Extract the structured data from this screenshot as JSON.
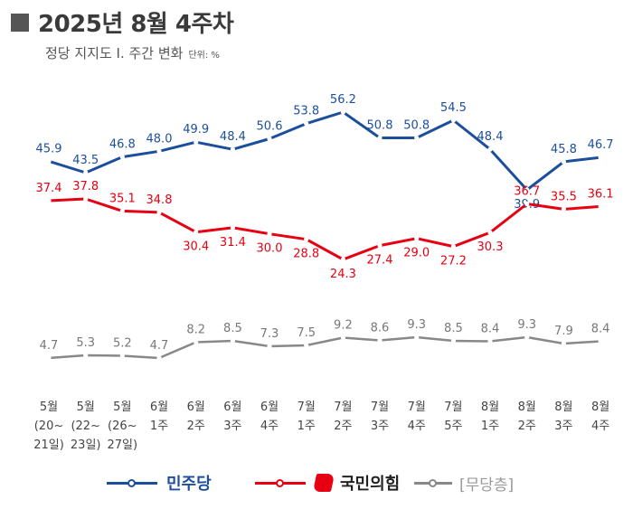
{
  "header": {
    "title": "2025년 8월 4주차",
    "subtitle": "정당 지지도 Ⅰ. 주간 변화",
    "unit": "단위: %"
  },
  "legend": {
    "items": [
      {
        "label": "민주당",
        "color": "#1b4f9c"
      },
      {
        "label": "국민의힘",
        "color": "#e60012"
      },
      {
        "label": "[무당층]",
        "color": "#888888"
      }
    ]
  },
  "chart_data": {
    "type": "line",
    "categories": [
      [
        "5월",
        "(20~",
        "21일)"
      ],
      [
        "5월",
        "(22~",
        "23일)"
      ],
      [
        "5월",
        "(26~",
        "27일)"
      ],
      [
        "6월",
        "1주"
      ],
      [
        "6월",
        "2주"
      ],
      [
        "6월",
        "3주"
      ],
      [
        "6월",
        "4주"
      ],
      [
        "7월",
        "1주"
      ],
      [
        "7월",
        "2주"
      ],
      [
        "7월",
        "3주"
      ],
      [
        "7월",
        "4주"
      ],
      [
        "7월",
        "5주"
      ],
      [
        "8월",
        "1주"
      ],
      [
        "8월",
        "2주"
      ],
      [
        "8월",
        "3주"
      ],
      [
        "8월",
        "4주"
      ]
    ],
    "series": [
      {
        "name": "민주당",
        "color": "#1b4f9c",
        "values": [
          45.9,
          43.5,
          46.8,
          48.0,
          49.9,
          48.4,
          50.6,
          53.8,
          56.2,
          50.8,
          50.8,
          54.5,
          48.4,
          39.9,
          45.8,
          46.7
        ],
        "labels": [
          "45.9",
          "43.5",
          "46.8",
          "48.0",
          "49.9",
          "48.4",
          "50.6",
          "53.8",
          "56.2",
          "50.8",
          "50.8",
          "54.5",
          "48.4",
          "39.9",
          "45.8",
          "46.7"
        ]
      },
      {
        "name": "국민의힘",
        "color": "#e60012",
        "values": [
          37.4,
          37.8,
          35.1,
          34.8,
          30.4,
          31.4,
          30.0,
          28.8,
          24.3,
          27.4,
          29.0,
          27.2,
          30.3,
          36.7,
          35.5,
          36.1
        ],
        "labels": [
          "37.4",
          "37.8",
          "35.1",
          "34.8",
          "30.4",
          "31.4",
          "30.0",
          "28.8",
          "24.3",
          "27.4",
          "29.0",
          "27.2",
          "30.3",
          "36.7",
          "35.5",
          "36.1"
        ]
      },
      {
        "name": "[무당층]",
        "color": "#888888",
        "values": [
          4.7,
          5.3,
          5.2,
          4.7,
          8.2,
          8.5,
          7.3,
          7.5,
          9.2,
          8.6,
          9.3,
          8.5,
          8.4,
          9.3,
          7.9,
          8.4
        ],
        "labels": [
          "4.7",
          "5.3",
          "5.2",
          "4.7",
          "8.2",
          "8.5",
          "7.3",
          "7.5",
          "9.2",
          "8.6",
          "9.3",
          "8.5",
          "8.4",
          "9.3",
          "7.9",
          "8.4"
        ]
      }
    ],
    "ylim": [
      0,
      60
    ],
    "grid": false,
    "legend_position": "bottom"
  }
}
